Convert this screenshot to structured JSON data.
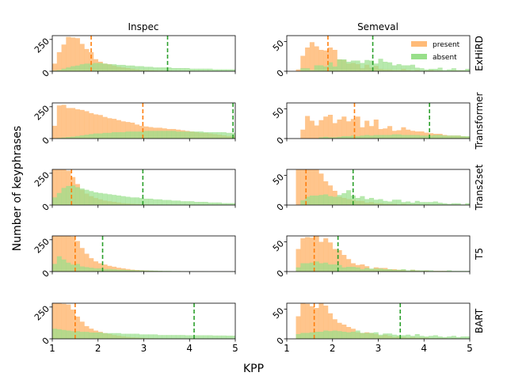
{
  "figure": {
    "xlabel": "KPP",
    "ylabel": "Number of keyphrases",
    "col_titles": [
      "Inspec",
      "Semeval"
    ],
    "row_labels": [
      "ExHiRD",
      "Transformer",
      "Trans2set",
      "T5",
      "BART"
    ],
    "legend": {
      "present": "present",
      "absent": "absent",
      "placement": "top-right",
      "panel": "ExHiRD / Semeval"
    },
    "colors": {
      "present_fill": "#ffbb78",
      "absent_fill": "#98df8a",
      "present_mean": "#ff7f0e",
      "absent_mean": "#2ca02c"
    }
  },
  "chart_data": {
    "type": "bar",
    "subtype": "overlaid histogram grid (5 rows x 2 columns)",
    "bin_start": 1,
    "bin_width": 0.1,
    "xlim": [
      1,
      5
    ],
    "xticks": [
      1,
      2,
      3,
      4,
      5
    ],
    "columns": [
      {
        "dataset": "Inspec",
        "ylim": [
          0,
          280
        ],
        "yticks": [
          0,
          250
        ]
      },
      {
        "dataset": "Semeval",
        "ylim": [
          0,
          60
        ],
        "yticks": [
          0,
          50
        ]
      }
    ],
    "panels": [
      {
        "model": "ExHiRD",
        "dataset": "Inspec",
        "present_mean": 1.85,
        "absent_mean": 3.52,
        "present": [
          60,
          150,
          210,
          270,
          265,
          260,
          215,
          175,
          150,
          95,
          75,
          60,
          55,
          45,
          35,
          30,
          25,
          20,
          15,
          10,
          10,
          8,
          6,
          5,
          4,
          4,
          3,
          3,
          2,
          2,
          2,
          1,
          1,
          1,
          1,
          0,
          0,
          0,
          0,
          0
        ],
        "absent": [
          5,
          10,
          20,
          30,
          40,
          45,
          55,
          60,
          60,
          65,
          65,
          60,
          55,
          55,
          50,
          50,
          45,
          45,
          40,
          40,
          35,
          35,
          30,
          30,
          30,
          30,
          25,
          25,
          25,
          25,
          20,
          20,
          20,
          20,
          20,
          15,
          15,
          15,
          15,
          15
        ]
      },
      {
        "model": "ExHiRD",
        "dataset": "Semeval",
        "present_mean": 1.9,
        "absent_mean": 2.88,
        "present": [
          0,
          0,
          3,
          26,
          40,
          49,
          42,
          36,
          35,
          40,
          36,
          20,
          19,
          13,
          14,
          12,
          5,
          11,
          6,
          9,
          4,
          3,
          3,
          2,
          2,
          4,
          2,
          1,
          2,
          0,
          1,
          2,
          1,
          1,
          0,
          0,
          1,
          1,
          1,
          0
        ],
        "absent": [
          0,
          0,
          0,
          5,
          5,
          2,
          10,
          10,
          8,
          15,
          8,
          20,
          20,
          16,
          18,
          18,
          14,
          19,
          18,
          13,
          21,
          16,
          15,
          10,
          12,
          10,
          10,
          11,
          6,
          5,
          3,
          4,
          4,
          6,
          2,
          3,
          5,
          2,
          2,
          4
        ]
      },
      {
        "model": "Transformer",
        "dataset": "Inspec",
        "present_mean": 2.98,
        "absent_mean": 4.95,
        "present": [
          100,
          260,
          265,
          240,
          240,
          230,
          225,
          215,
          200,
          190,
          185,
          170,
          160,
          155,
          145,
          135,
          130,
          125,
          110,
          100,
          95,
          90,
          85,
          85,
          80,
          75,
          75,
          70,
          65,
          60,
          55,
          50,
          45,
          45,
          40,
          35,
          30,
          25,
          20,
          20
        ],
        "absent": [
          2,
          5,
          8,
          12,
          15,
          20,
          25,
          30,
          35,
          40,
          40,
          45,
          45,
          50,
          50,
          50,
          55,
          55,
          55,
          55,
          60,
          60,
          60,
          60,
          60,
          60,
          60,
          55,
          55,
          55,
          55,
          55,
          55,
          50,
          50,
          50,
          50,
          50,
          45,
          45
        ]
      },
      {
        "model": "Transformer",
        "dataset": "Semeval",
        "present_mean": 2.48,
        "absent_mean": 4.12,
        "present": [
          0,
          0,
          0,
          15,
          38,
          30,
          22,
          31,
          37,
          40,
          26,
          32,
          37,
          29,
          33,
          37,
          19,
          30,
          21,
          32,
          16,
          17,
          21,
          13,
          14,
          19,
          15,
          13,
          12,
          12,
          10,
          9,
          8,
          8,
          6,
          5,
          5,
          5,
          4,
          3
        ],
        "absent": [
          0,
          0,
          0,
          0,
          0,
          0,
          0,
          2,
          3,
          2,
          2,
          3,
          4,
          4,
          5,
          4,
          5,
          6,
          5,
          6,
          6,
          6,
          6,
          7,
          7,
          6,
          6,
          6,
          6,
          5,
          5,
          5,
          6,
          6,
          5,
          5,
          5,
          5,
          4,
          4
        ]
      },
      {
        "model": "Trans2set",
        "dataset": "Inspec",
        "present_mean": 1.42,
        "absent_mean": 2.98,
        "present": [
          280,
          280,
          280,
          270,
          220,
          165,
          120,
          90,
          70,
          55,
          45,
          35,
          30,
          25,
          20,
          15,
          12,
          10,
          8,
          6,
          5,
          4,
          3,
          3,
          2,
          2,
          2,
          1,
          1,
          1,
          1,
          0,
          0,
          0,
          0,
          0,
          0,
          0,
          0,
          0
        ],
        "absent": [
          60,
          95,
          135,
          150,
          155,
          140,
          130,
          120,
          110,
          100,
          95,
          90,
          85,
          80,
          75,
          70,
          65,
          60,
          60,
          55,
          50,
          50,
          45,
          45,
          40,
          40,
          35,
          35,
          30,
          30,
          30,
          25,
          25,
          25,
          20,
          20,
          20,
          15,
          15,
          15
        ]
      },
      {
        "model": "Trans2set",
        "dataset": "Semeval",
        "present_mean": 1.42,
        "absent_mean": 2.45,
        "present": [
          0,
          0,
          60,
          60,
          60,
          60,
          60,
          53,
          40,
          33,
          24,
          14,
          12,
          10,
          9,
          7,
          7,
          4,
          5,
          3,
          3,
          2,
          2,
          2,
          1,
          2,
          1,
          1,
          1,
          0,
          1,
          0,
          0,
          0,
          0,
          0,
          0,
          0,
          0,
          0
        ],
        "absent": [
          0,
          0,
          0,
          8,
          14,
          16,
          16,
          17,
          18,
          15,
          14,
          17,
          20,
          25,
          16,
          12,
          15,
          10,
          12,
          9,
          10,
          7,
          6,
          9,
          9,
          5,
          6,
          4,
          7,
          5,
          5,
          5,
          6,
          4,
          3,
          2,
          3,
          3,
          1,
          3
        ]
      },
      {
        "model": "T5",
        "dataset": "Inspec",
        "present_mean": 1.5,
        "absent_mean": 2.1,
        "present": [
          280,
          280,
          280,
          280,
          275,
          240,
          185,
          140,
          105,
          80,
          65,
          55,
          45,
          38,
          30,
          25,
          20,
          15,
          12,
          10,
          8,
          6,
          5,
          4,
          3,
          3,
          2,
          2,
          2,
          1,
          1,
          1,
          1,
          0,
          0,
          0,
          0,
          0,
          0,
          0
        ],
        "absent": [
          60,
          120,
          95,
          70,
          55,
          60,
          40,
          35,
          30,
          25,
          25,
          20,
          20,
          18,
          15,
          15,
          12,
          12,
          10,
          10,
          8,
          8,
          7,
          6,
          5,
          5,
          4,
          4,
          3,
          3,
          3,
          2,
          2,
          2,
          1,
          1,
          1,
          1,
          1,
          1
        ]
      },
      {
        "model": "T5",
        "dataset": "Semeval",
        "present_mean": 1.6,
        "absent_mean": 2.12,
        "present": [
          0,
          0,
          38,
          56,
          58,
          57,
          60,
          50,
          56,
          49,
          38,
          36,
          28,
          21,
          14,
          11,
          12,
          9,
          4,
          7,
          6,
          6,
          4,
          4,
          3,
          3,
          1,
          3,
          2,
          1,
          2,
          0,
          1,
          1,
          1,
          0,
          0,
          0,
          0,
          0
        ],
        "absent": [
          0,
          0,
          7,
          14,
          14,
          15,
          17,
          14,
          15,
          12,
          12,
          11,
          7,
          8,
          8,
          7,
          4,
          6,
          5,
          5,
          5,
          4,
          4,
          3,
          3,
          4,
          2,
          3,
          2,
          2,
          2,
          2,
          1,
          1,
          1,
          2,
          1,
          1,
          1,
          1
        ]
      },
      {
        "model": "BART",
        "dataset": "Inspec",
        "present_mean": 1.5,
        "absent_mean": 4.1,
        "present": [
          280,
          280,
          275,
          270,
          230,
          175,
          135,
          100,
          80,
          65,
          55,
          45,
          38,
          30,
          25,
          20,
          15,
          12,
          10,
          8,
          6,
          5,
          4,
          3,
          3,
          2,
          2,
          2,
          1,
          1,
          1,
          1,
          0,
          0,
          0,
          0,
          0,
          0,
          0,
          0
        ],
        "absent": [
          80,
          75,
          70,
          65,
          60,
          60,
          55,
          55,
          50,
          50,
          50,
          45,
          45,
          45,
          45,
          40,
          40,
          40,
          40,
          35,
          35,
          35,
          35,
          30,
          30,
          30,
          30,
          30,
          30,
          28,
          28,
          28,
          28,
          28,
          28,
          26,
          26,
          26,
          25,
          25
        ]
      },
      {
        "model": "BART",
        "dataset": "Semeval",
        "present_mean": 1.6,
        "absent_mean": 3.48,
        "present": [
          0,
          0,
          38,
          60,
          59,
          55,
          52,
          60,
          56,
          43,
          33,
          27,
          24,
          20,
          17,
          11,
          10,
          11,
          10,
          8,
          5,
          7,
          5,
          3,
          4,
          3,
          2,
          3,
          2,
          2,
          2,
          1,
          1,
          1,
          1,
          0,
          1,
          0,
          0,
          0
        ],
        "absent": [
          0,
          0,
          8,
          10,
          10,
          11,
          12,
          12,
          14,
          13,
          14,
          13,
          12,
          11,
          12,
          14,
          10,
          10,
          10,
          11,
          7,
          9,
          9,
          7,
          6,
          6,
          7,
          5,
          8,
          5,
          4,
          5,
          6,
          4,
          3,
          4,
          5,
          3,
          4,
          4
        ]
      }
    ]
  }
}
